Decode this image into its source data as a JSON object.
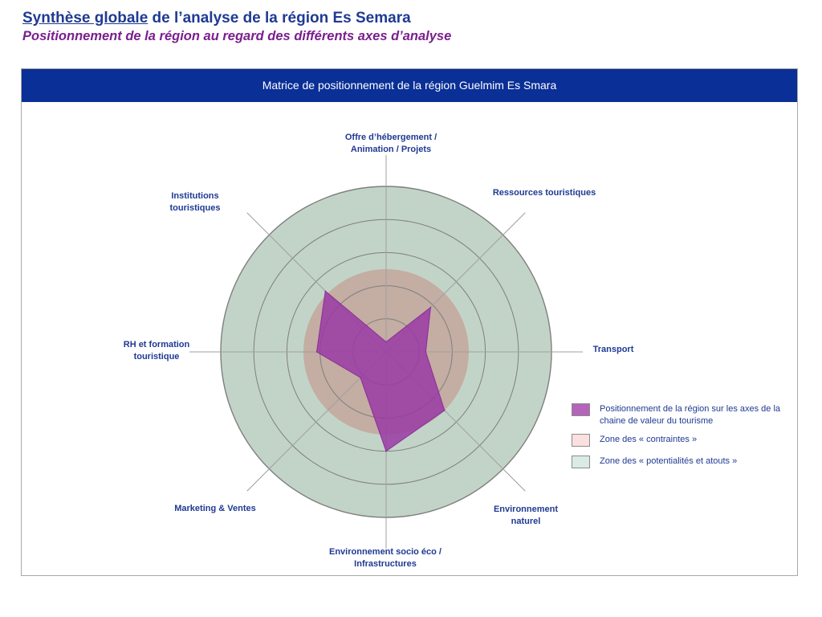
{
  "header": {
    "title_part1": "Synthèse globale",
    "title_part2": " de l’analyse de la région Es Semara",
    "subtitle": "Positionnement de la région au regard des différents axes d’analyse"
  },
  "panel": {
    "title": "Matrice de positionnement de la région Guelmim Es Smara"
  },
  "chart_data": {
    "type": "radar",
    "axes": [
      "Offre d’hébergement / Animation / Projets",
      "Ressources touristiques",
      "Transport",
      "Environnement naturel",
      "Environnement socio éco / Infrastructures",
      "Marketing & Ventes",
      "RH et formation touristique",
      "Institutions touristiques"
    ],
    "scale_max": 5,
    "rings": [
      1,
      2,
      3,
      4,
      5
    ],
    "zones": [
      {
        "name": "Zone des « contraintes »",
        "from": 0,
        "to": 2.5,
        "color": "#c4ada2"
      },
      {
        "name": "Zone des « potentialités et atouts »",
        "from": 2.5,
        "to": 5,
        "color": "#c2d4c8"
      }
    ],
    "series": [
      {
        "name": "Positionnement de la région sur les axes de la chaine de valeur du tourisme",
        "values": [
          0.3,
          1.9,
          1.2,
          2.5,
          3.0,
          1.1,
          2.1,
          2.6
        ],
        "color": "#9a3aa5"
      }
    ]
  },
  "legend": {
    "items": [
      {
        "label": "Positionnement de la région sur les axes de la chaine de valeur du tourisme",
        "color": "#b464b9"
      },
      {
        "label": "Zone des « contraintes »",
        "color": "#fbe0e0"
      },
      {
        "label": "Zone des « potentialités et atouts »",
        "color": "#d9ebe4"
      }
    ]
  }
}
